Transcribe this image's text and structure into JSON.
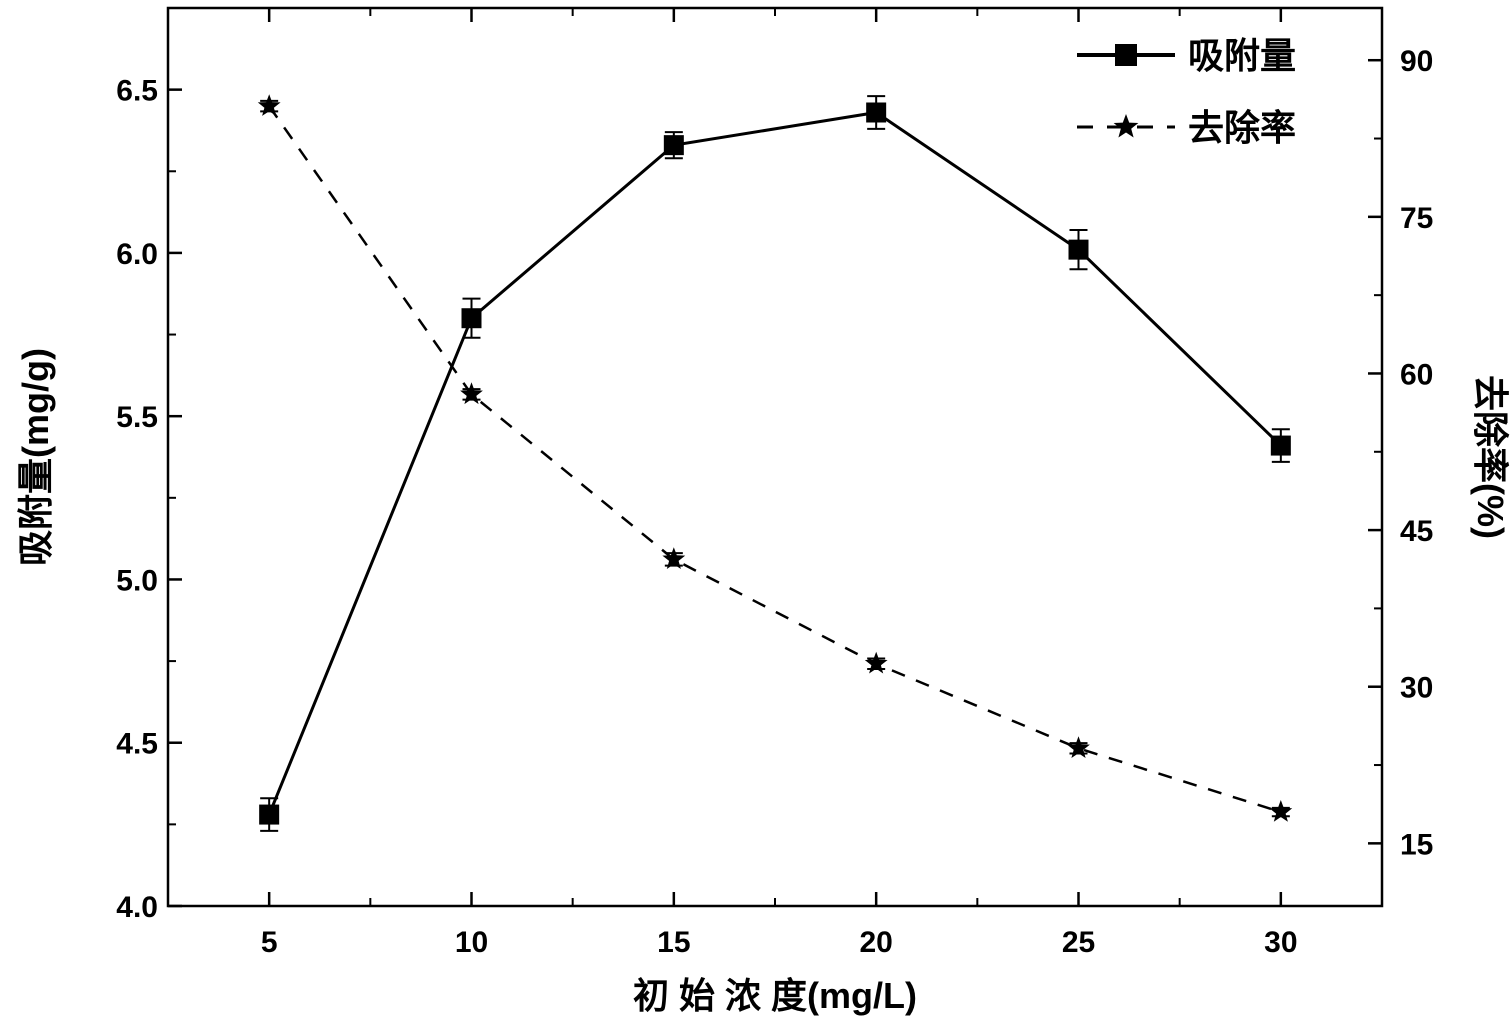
{
  "chart_data": {
    "type": "line",
    "title": "",
    "xlabel": "初 始 浓 度(mg/L)",
    "ylabel": "吸附量(mg/g)",
    "y2label": "去除率(%)",
    "x": [
      5,
      10,
      15,
      20,
      25,
      30
    ],
    "xlim": [
      2.5,
      32.5
    ],
    "xticks": [
      5,
      10,
      15,
      20,
      25,
      30
    ],
    "ylim": [
      4.0,
      6.75
    ],
    "yticks": [
      4.0,
      4.5,
      5.0,
      5.5,
      6.0,
      6.5
    ],
    "y2lim": [
      9,
      95
    ],
    "y2ticks": [
      15,
      30,
      45,
      60,
      75,
      90
    ],
    "grid": false,
    "legend_position": "top-right",
    "series": [
      {
        "name": "吸附量",
        "axis": "left",
        "values": [
          4.28,
          5.8,
          6.33,
          6.43,
          6.01,
          5.41
        ],
        "errors": [
          0.05,
          0.06,
          0.04,
          0.05,
          0.06,
          0.05
        ],
        "line_style": "solid",
        "marker": "square",
        "color": "#000000"
      },
      {
        "name": "去除率",
        "axis": "right",
        "values": [
          85.6,
          58.0,
          42.2,
          32.2,
          24.1,
          18.0
        ],
        "errors": [
          0.5,
          0.5,
          0.6,
          0.5,
          0.5,
          0.4
        ],
        "line_style": "dashed",
        "marker": "star",
        "color": "#000000"
      }
    ]
  }
}
